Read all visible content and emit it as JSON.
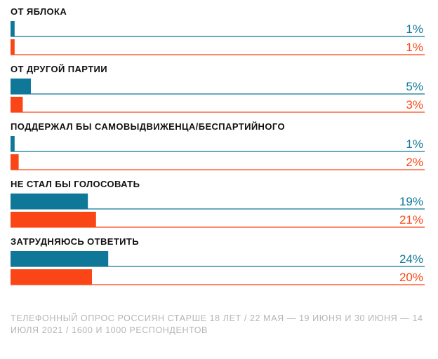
{
  "chart_data": {
    "type": "bar",
    "orientation": "horizontal",
    "categories": [
      "ОТ ЯБЛОКА",
      "ОТ ДРУГОЙ ПАРТИИ",
      "ПОДДЕРЖАЛ БЫ САМОВЫДВИЖЕНЦА/БЕСПАРТИЙНОГО",
      "НЕ СТАЛ БЫ ГОЛОСОВАТЬ",
      "ЗАТРУДНЯЮСЬ ОТВЕТИТЬ"
    ],
    "series": [
      {
        "color": "#0f7898",
        "values": [
          1,
          5,
          1,
          19,
          24
        ],
        "labels": [
          "1%",
          "5%",
          "1%",
          "19%",
          "24%"
        ]
      },
      {
        "color": "#fa4616",
        "values": [
          1,
          3,
          2,
          21,
          20
        ],
        "labels": [
          "1%",
          "3%",
          "2%",
          "21%",
          "20%"
        ]
      }
    ],
    "xlim": [
      0,
      100
    ],
    "grid": false,
    "legend": "none"
  },
  "footnote": "ТЕЛЕФОННЫЙ ОПРОС РОССИЯН СТАРШЕ 18 ЛЕТ / 22 МАЯ — 19 ИЮНЯ И  30 ИЮНЯ — 14 ИЮЛЯ 2021 / 1600 И 1000 РЕСПОНДЕНТОВ"
}
